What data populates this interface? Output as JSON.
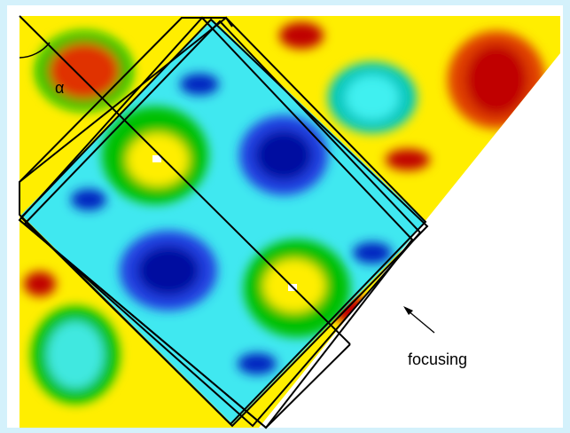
{
  "labels": {
    "angle": "α",
    "annotation": "focusing"
  }
}
